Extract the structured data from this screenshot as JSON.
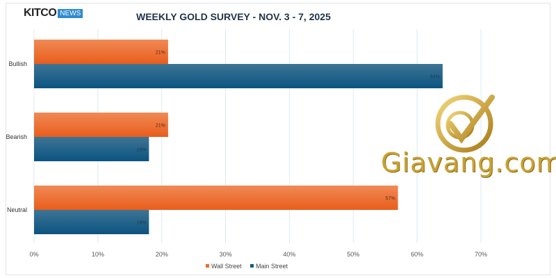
{
  "header": {
    "logo_text": "KITCO",
    "logo_badge": "NEWS"
  },
  "watermark": {
    "text": "Giavang.com"
  },
  "chart_data": {
    "type": "bar",
    "orientation": "horizontal",
    "title": "WEEKLY GOLD SURVEY - NOV. 3 - 7, 2025",
    "categories": [
      "Bullish",
      "Bearish",
      "Neutral"
    ],
    "series": [
      {
        "name": "Wall Street",
        "color": "#ee6a2a",
        "values": [
          21,
          21,
          57
        ]
      },
      {
        "name": "Main Street",
        "color": "#115a82",
        "values": [
          64,
          18,
          18
        ]
      }
    ],
    "xlim": [
      0,
      70
    ],
    "xticks": [
      "0%",
      "10%",
      "20%",
      "30%",
      "40%",
      "50%",
      "60%",
      "70%"
    ],
    "grid": true,
    "legend": "bottom"
  }
}
